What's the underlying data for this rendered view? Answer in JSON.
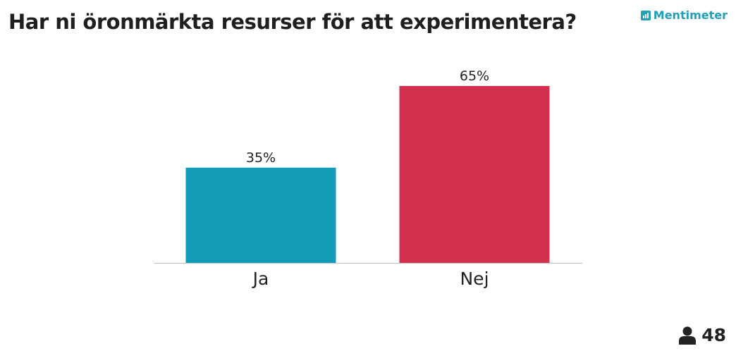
{
  "header": {
    "title": "Har ni öronmärkta resurser för att experimentera?",
    "brand": "Mentimeter"
  },
  "footer": {
    "participant_count": "48"
  },
  "colors": {
    "brand": "#21a0b8",
    "baseline": "#bfbfbf"
  },
  "chart_data": {
    "type": "bar",
    "categories": [
      "Ja",
      "Nej"
    ],
    "values": [
      35,
      65
    ],
    "value_labels": [
      "35%",
      "65%"
    ],
    "colors": [
      "#139cb8",
      "#d3304f"
    ],
    "unit": "%",
    "ylim": [
      0,
      65
    ],
    "grid": false
  }
}
